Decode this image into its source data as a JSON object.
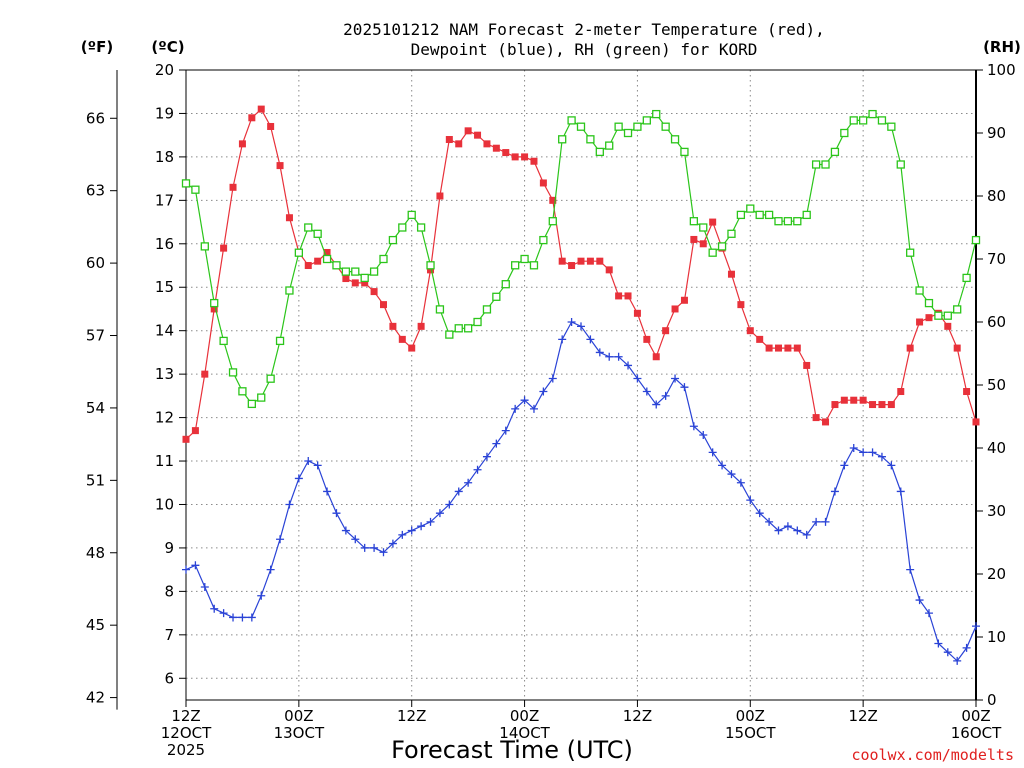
{
  "chart_data": {
    "type": "line",
    "title": [
      "2025101212 NAM Forecast 2-meter Temperature (red),",
      "Dewpoint (blue), RH (green) for KORD"
    ],
    "xlabel": "Forecast Time (UTC)",
    "credit": "coolwx.com/modelts",
    "left_unit_f": "(ºF)",
    "left_unit_c": "(ºC)",
    "right_unit": "(RH)",
    "x_hour_range": [
      0,
      84
    ],
    "y_celsius_range": [
      5.5,
      20
    ],
    "y_rh_range": [
      0,
      100
    ],
    "celsius_ticks": [
      20,
      19,
      18,
      17,
      16,
      15,
      14,
      13,
      12,
      11,
      10,
      9,
      8,
      7,
      6
    ],
    "fahrenheit_ticks": [
      66,
      63,
      60,
      57,
      54,
      51,
      48,
      45,
      42
    ],
    "rh_ticks": [
      100,
      90,
      80,
      70,
      60,
      50,
      40,
      30,
      20,
      10,
      0
    ],
    "x_ticks": [
      {
        "hour": 0,
        "lines": [
          "12Z",
          "12OCT",
          "2025"
        ]
      },
      {
        "hour": 12,
        "lines": [
          "00Z",
          "13OCT"
        ]
      },
      {
        "hour": 24,
        "lines": [
          "12Z"
        ]
      },
      {
        "hour": 36,
        "lines": [
          "00Z",
          "14OCT"
        ]
      },
      {
        "hour": 48,
        "lines": [
          "12Z"
        ]
      },
      {
        "hour": 60,
        "lines": [
          "00Z",
          "15OCT"
        ]
      },
      {
        "hour": 72,
        "lines": [
          "12Z"
        ]
      },
      {
        "hour": 84,
        "lines": [
          "00Z",
          "16OCT"
        ]
      }
    ],
    "series": [
      {
        "name": "Temperature",
        "axis": "celsius",
        "color": "#e8313a",
        "marker": "filled-square",
        "values": [
          11.5,
          11.7,
          13.0,
          14.5,
          15.9,
          17.3,
          18.3,
          18.9,
          19.1,
          18.7,
          17.8,
          16.6,
          15.8,
          15.5,
          15.6,
          15.8,
          15.5,
          15.2,
          15.1,
          15.1,
          14.9,
          14.6,
          14.1,
          13.8,
          13.6,
          14.1,
          15.4,
          17.1,
          18.4,
          18.3,
          18.6,
          18.5,
          18.3,
          18.2,
          18.1,
          18.0,
          18.0,
          17.9,
          17.4,
          17.0,
          15.6,
          15.5,
          15.6,
          15.6,
          15.6,
          15.4,
          14.8,
          14.8,
          14.4,
          13.8,
          13.4,
          14.0,
          14.5,
          14.7,
          16.1,
          16.0,
          16.5,
          15.9,
          15.3,
          14.6,
          14.0,
          13.8,
          13.6,
          13.6,
          13.6,
          13.6,
          13.2,
          12.0,
          11.9,
          12.3,
          12.4,
          12.4,
          12.4,
          12.3,
          12.3,
          12.3,
          12.6,
          13.6,
          14.2,
          14.3,
          14.4,
          14.1,
          13.6,
          12.6,
          11.9
        ]
      },
      {
        "name": "Dewpoint",
        "axis": "celsius",
        "color": "#2a43d6",
        "marker": "plus",
        "values": [
          8.5,
          8.6,
          8.1,
          7.6,
          7.5,
          7.4,
          7.4,
          7.4,
          7.9,
          8.5,
          9.2,
          10.0,
          10.6,
          11.0,
          10.9,
          10.3,
          9.8,
          9.4,
          9.2,
          9.0,
          9.0,
          8.9,
          9.1,
          9.3,
          9.4,
          9.5,
          9.6,
          9.8,
          10.0,
          10.3,
          10.5,
          10.8,
          11.1,
          11.4,
          11.7,
          12.2,
          12.4,
          12.2,
          12.6,
          12.9,
          13.8,
          14.2,
          14.1,
          13.8,
          13.5,
          13.4,
          13.4,
          13.2,
          12.9,
          12.6,
          12.3,
          12.5,
          12.9,
          12.7,
          11.8,
          11.6,
          11.2,
          10.9,
          10.7,
          10.5,
          10.1,
          9.8,
          9.6,
          9.4,
          9.5,
          9.4,
          9.3,
          9.6,
          9.6,
          10.3,
          10.9,
          11.3,
          11.2,
          11.2,
          11.1,
          10.9,
          10.3,
          8.5,
          7.8,
          7.5,
          6.8,
          6.6,
          6.4,
          6.7,
          7.2
        ]
      },
      {
        "name": "RH",
        "axis": "rh",
        "color": "#2bc51a",
        "marker": "open-square",
        "values": [
          82,
          81,
          72,
          63,
          57,
          52,
          49,
          47,
          48,
          51,
          57,
          65,
          71,
          75,
          74,
          70,
          69,
          68,
          68,
          67,
          68,
          70,
          73,
          75,
          77,
          75,
          69,
          62,
          58,
          59,
          59,
          60,
          62,
          64,
          66,
          69,
          70,
          69,
          73,
          76,
          89,
          92,
          91,
          89,
          87,
          88,
          91,
          90,
          91,
          92,
          93,
          91,
          89,
          87,
          76,
          75,
          71,
          72,
          74,
          77,
          78,
          77,
          77,
          76,
          76,
          76,
          77,
          85,
          85,
          87,
          90,
          92,
          92,
          93,
          92,
          91,
          85,
          71,
          65,
          63,
          61,
          61,
          62,
          67,
          73
        ]
      }
    ]
  }
}
